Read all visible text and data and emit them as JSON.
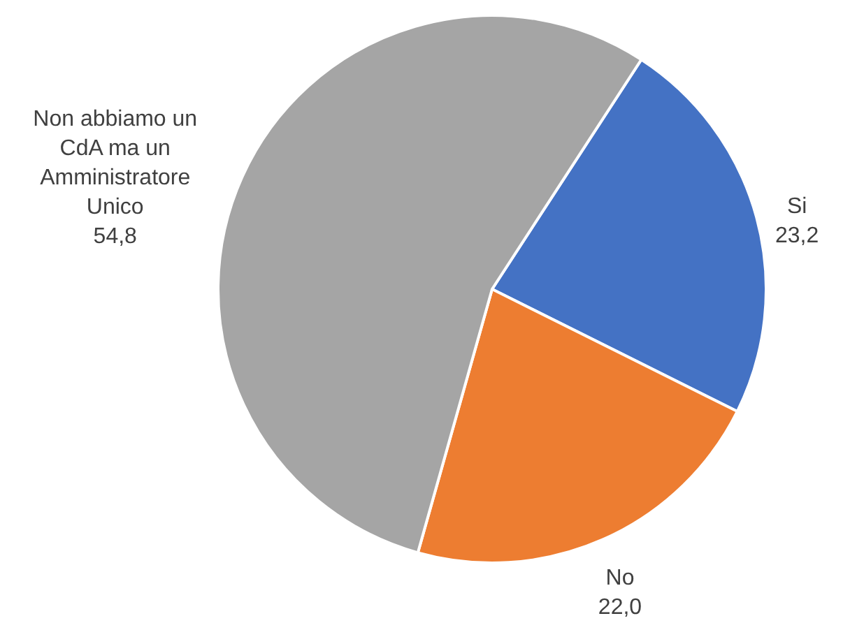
{
  "chart_data": {
    "type": "pie",
    "categories": [
      "Si",
      "No",
      "Non abbiamo un CdA ma un Amministratore Unico"
    ],
    "values": [
      23.2,
      22.0,
      54.8
    ],
    "colors": [
      "#4472c4",
      "#ed7d31",
      "#a5a5a5"
    ],
    "value_labels": [
      "23,2",
      "22,0",
      "54,8"
    ]
  }
}
